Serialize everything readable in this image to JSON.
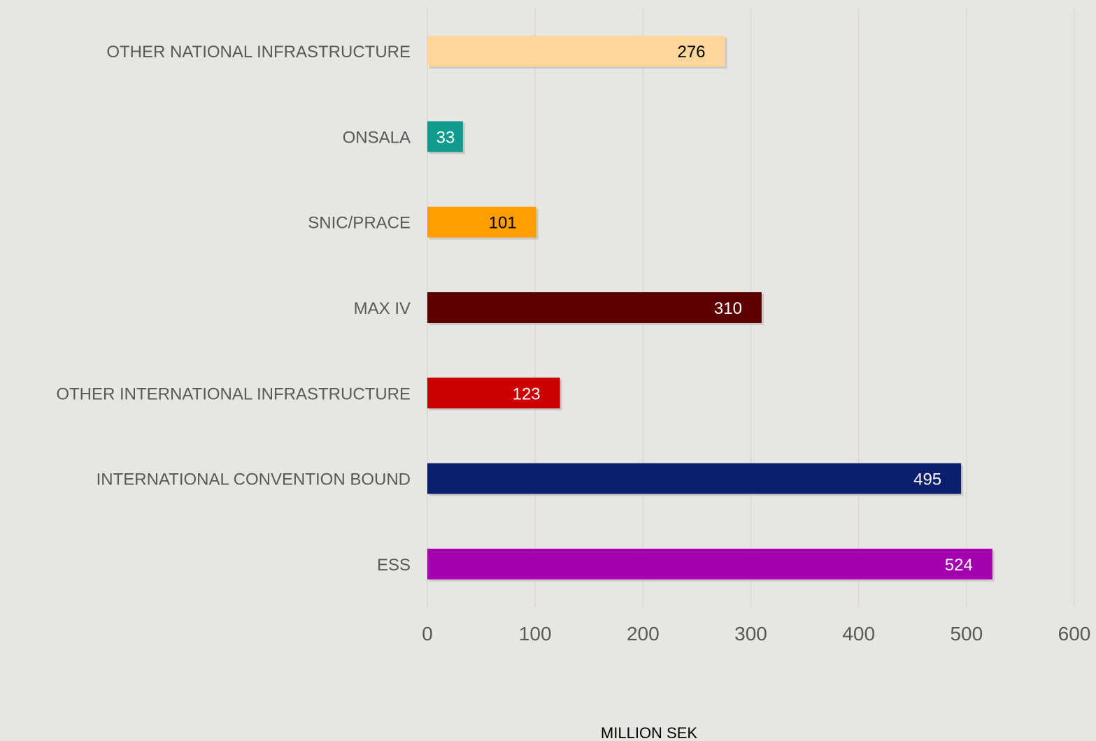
{
  "chart_data": {
    "type": "bar",
    "orientation": "horizontal",
    "categories": [
      "OTHER NATIONAL INFRASTRUCTURE",
      "ONSALA",
      "SNIC/PRACE",
      "MAX IV",
      "OTHER INTERNATIONAL INFRASTRUCTURE",
      "INTERNATIONAL CONVENTION BOUND",
      "ESS"
    ],
    "values": [
      276,
      33,
      101,
      310,
      123,
      495,
      524
    ],
    "colors": [
      "#ffd699",
      "#0f9b8e",
      "#ff9e00",
      "#5c0000",
      "#cc0000",
      "#0c1f6e",
      "#a500b0"
    ],
    "label_colors": [
      "#000000",
      "#ffffff",
      "#000000",
      "#ffffff",
      "#ffffff",
      "#ffffff",
      "#ffffff"
    ],
    "xlabel": "MILLION SEK",
    "xlim": [
      0,
      600
    ],
    "xticks": [
      "0",
      "100",
      "200",
      "300",
      "400",
      "500",
      "600"
    ],
    "grid": "vertical",
    "legend": "none"
  }
}
